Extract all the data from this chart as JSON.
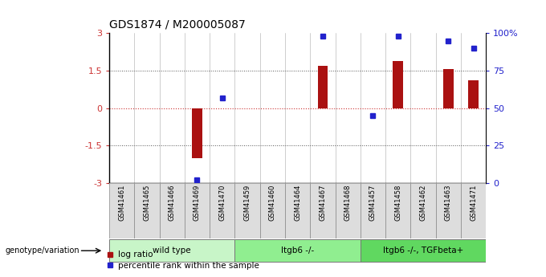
{
  "title": "GDS1874 / M200005087",
  "samples": [
    "GSM41461",
    "GSM41465",
    "GSM41466",
    "GSM41469",
    "GSM41470",
    "GSM41459",
    "GSM41460",
    "GSM41464",
    "GSM41467",
    "GSM41468",
    "GSM41457",
    "GSM41458",
    "GSM41462",
    "GSM41463",
    "GSM41471"
  ],
  "log_ratio": [
    0,
    0,
    0,
    -2.0,
    0,
    0,
    0,
    0,
    1.7,
    0,
    0,
    1.9,
    0,
    1.55,
    1.1
  ],
  "percentile_rank": [
    null,
    null,
    null,
    2,
    57,
    null,
    null,
    null,
    98,
    null,
    45,
    98,
    null,
    95,
    90
  ],
  "groups": [
    {
      "label": "wild type",
      "start": 0,
      "end": 4,
      "color": "#c8f5c8"
    },
    {
      "label": "Itgb6 -/-",
      "start": 5,
      "end": 9,
      "color": "#90ee90"
    },
    {
      "label": "Itgb6 -/-, TGFbeta+",
      "start": 10,
      "end": 14,
      "color": "#60d860"
    }
  ],
  "ylim_left": [
    -3,
    3
  ],
  "ylim_right": [
    0,
    100
  ],
  "yticks_left": [
    -3,
    -1.5,
    0,
    1.5,
    3
  ],
  "ytick_labels_left": [
    "-3",
    "-1.5",
    "0",
    "1.5",
    "3"
  ],
  "yticks_right": [
    0,
    25,
    50,
    75,
    100
  ],
  "ytick_labels_right": [
    "0",
    "25",
    "50",
    "75",
    "100%"
  ],
  "bar_color": "#aa1111",
  "dot_color": "#2222cc",
  "zero_line_color": "#cc3333",
  "dotted_line_color": "#555555",
  "sample_box_color": "#dddddd",
  "legend_log": "log ratio",
  "legend_pct": "percentile rank within the sample",
  "bar_width": 0.4
}
